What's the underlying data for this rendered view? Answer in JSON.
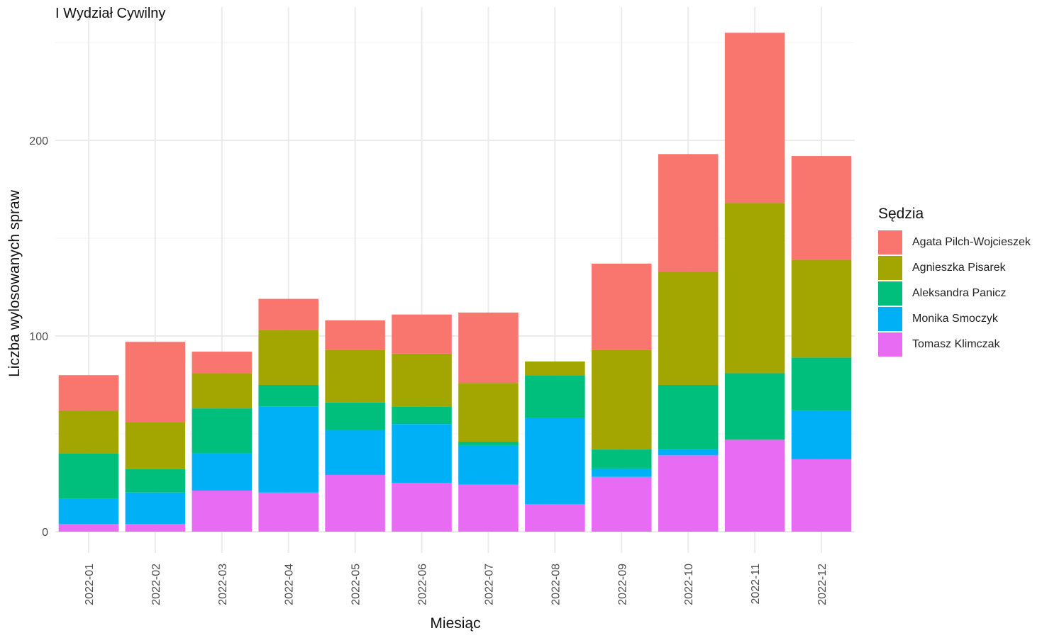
{
  "chart_data": {
    "type": "bar",
    "stacked": true,
    "title": "I Wydział Cywilny",
    "xlabel": "Miesiąc",
    "ylabel": "Liczba wylosowanych spraw",
    "ylim": [
      0,
      260
    ],
    "yticks": [
      0,
      100,
      200
    ],
    "grid": true,
    "legend_title": "Sędzia",
    "legend_position": "right",
    "categories": [
      "2022-01",
      "2022-02",
      "2022-03",
      "2022-04",
      "2022-05",
      "2022-06",
      "2022-07",
      "2022-08",
      "2022-09",
      "2022-10",
      "2022-11",
      "2022-12"
    ],
    "series": [
      {
        "name": "Agata Pilch-Wojcieszek",
        "color": "#F8766D",
        "values": [
          18,
          41,
          11,
          16,
          15,
          20,
          36,
          0,
          44,
          60,
          87,
          53
        ]
      },
      {
        "name": "Agnieszka Pisarek",
        "color": "#A3A500",
        "values": [
          22,
          24,
          18,
          28,
          27,
          27,
          30,
          7,
          51,
          58,
          87,
          50
        ]
      },
      {
        "name": "Aleksandra Panicz",
        "color": "#00BF7D",
        "values": [
          23,
          12,
          23,
          11,
          14,
          9,
          2,
          22,
          10,
          33,
          34,
          27
        ]
      },
      {
        "name": "Monika Smoczyk",
        "color": "#00B0F6",
        "values": [
          13,
          16,
          19,
          44,
          23,
          30,
          20,
          44,
          4,
          3,
          0,
          25
        ]
      },
      {
        "name": "Tomasz Klimczak",
        "color": "#E76BF3",
        "values": [
          4,
          4,
          21,
          20,
          29,
          25,
          24,
          14,
          28,
          39,
          47,
          37
        ]
      }
    ]
  }
}
